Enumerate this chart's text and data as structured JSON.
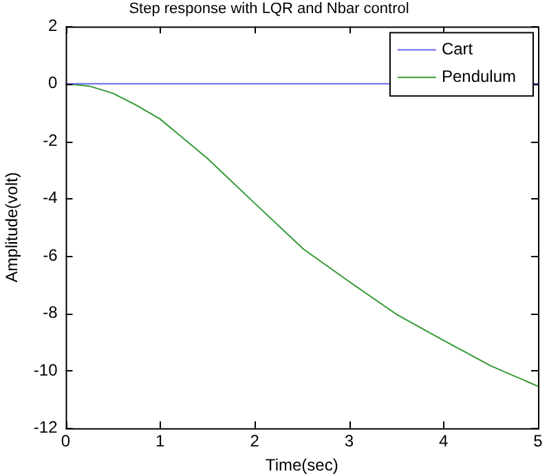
{
  "chart_data": {
    "type": "line",
    "title": "Step response with LQR and Nbar control",
    "xlabel": "Time(sec)",
    "ylabel": "Amplitude(volt)",
    "xlim": [
      0,
      5
    ],
    "ylim": [
      -12,
      2
    ],
    "xticks": [
      0,
      1,
      2,
      3,
      4,
      5
    ],
    "yticks": [
      -12,
      -10,
      -8,
      -6,
      -4,
      -2,
      0,
      2
    ],
    "grid": false,
    "legend": "top right",
    "marker": "none",
    "line_style": "solid",
    "series": [
      {
        "name": "Cart",
        "color": "#6666ee",
        "x": [
          0,
          5
        ],
        "values": [
          0,
          0
        ]
      },
      {
        "name": "Pendulum",
        "color": "#339933",
        "x": [
          0,
          0.25,
          0.5,
          0.75,
          1,
          1.5,
          2,
          2.52,
          3,
          3.5,
          4,
          4.5,
          5
        ],
        "values": [
          0,
          -0.08,
          -0.33,
          -0.75,
          -1.23,
          -2.6,
          -4.16,
          -5.77,
          -6.89,
          -8.03,
          -8.94,
          -9.83,
          -10.54
        ]
      }
    ]
  }
}
